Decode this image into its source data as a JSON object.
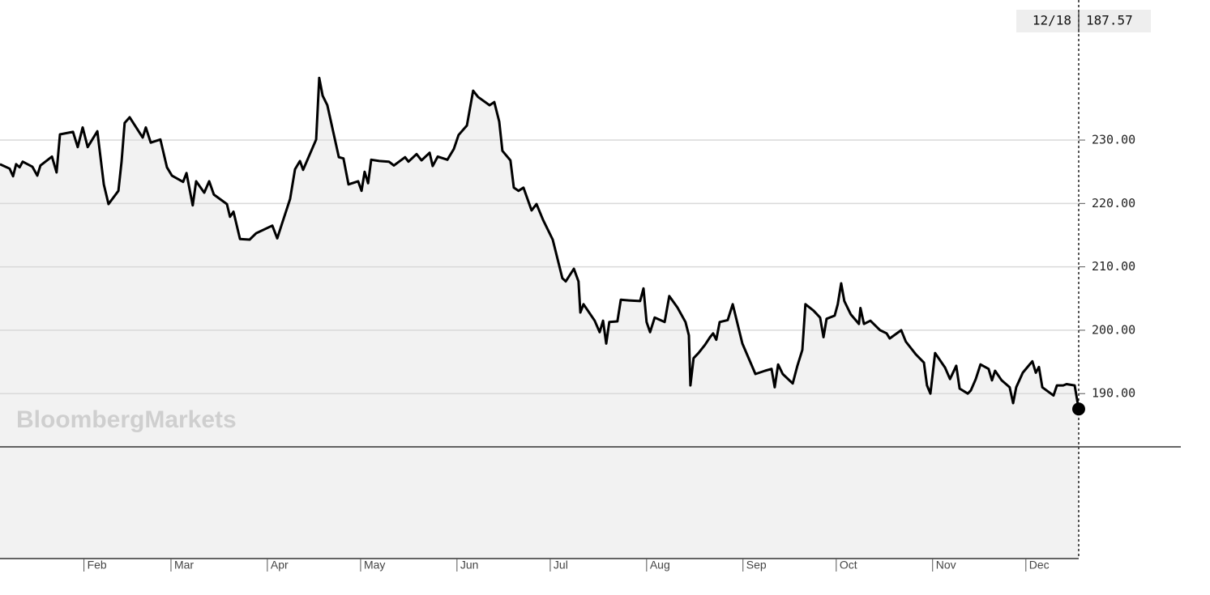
{
  "chart_data": {
    "type": "line",
    "color": "#000000",
    "fill": "#f2f2f2",
    "watermark": "BloombergMarkets",
    "crosshair": {
      "date": "12/18",
      "value": 187.57
    },
    "xlim": [
      5,
      352
    ],
    "ylim": [
      181.6,
      252.1
    ],
    "xticks": [
      {
        "value": 32,
        "label": "Feb"
      },
      {
        "value": 60,
        "label": "Mar"
      },
      {
        "value": 91,
        "label": "Apr"
      },
      {
        "value": 121,
        "label": "May"
      },
      {
        "value": 152,
        "label": "Jun"
      },
      {
        "value": 182,
        "label": "Jul"
      },
      {
        "value": 213,
        "label": "Aug"
      },
      {
        "value": 244,
        "label": "Sep"
      },
      {
        "value": 274,
        "label": "Oct"
      },
      {
        "value": 305,
        "label": "Nov"
      },
      {
        "value": 335,
        "label": "Dec"
      }
    ],
    "yticks": [
      {
        "value": 190,
        "label": "190.00"
      },
      {
        "value": 200,
        "label": "200.00"
      },
      {
        "value": 210,
        "label": "210.00"
      },
      {
        "value": 220,
        "label": "220.00"
      },
      {
        "value": 230,
        "label": "230.00"
      }
    ],
    "grid": true,
    "x": [
      5,
      8.1,
      9.2,
      10.2,
      11.3,
      12.3,
      15.4,
      17,
      18,
      21.7,
      23.2,
      24.3,
      28.5,
      30,
      31.6,
      33.2,
      36.3,
      38.4,
      39.9,
      43.1,
      44.1,
      45.1,
      46.7,
      50.9,
      51.9,
      53.5,
      56.6,
      58.7,
      60.3,
      63.9,
      65,
      67,
      68.1,
      70.7,
      72.3,
      73.8,
      78,
      79,
      80.1,
      82.2,
      85.3,
      87.4,
      92.6,
      94.2,
      95.7,
      98.3,
      99.9,
      101.5,
      102.5,
      106.7,
      107.7,
      108.8,
      110.3,
      114,
      115.5,
      117.1,
      120.2,
      121.3,
      122.3,
      123.4,
      124.4,
      127,
      130.1,
      131.7,
      135.3,
      136.4,
      139,
      140.6,
      143.2,
      144.2,
      145.8,
      148.9,
      151,
      152.5,
      155.2,
      157.2,
      158.8,
      162.5,
      164,
      165.6,
      166.6,
      169.2,
      170.3,
      171.8,
      173.4,
      176,
      177.6,
      179.7,
      182.8,
      185.9,
      187,
      189.6,
      191.1,
      191.7,
      192.7,
      196.3,
      197.9,
      199,
      200,
      201,
      203.6,
      204.7,
      207.3,
      210.9,
      212,
      213,
      214.1,
      215.6,
      218.8,
      220.3,
      222.9,
      225.5,
      226.6,
      227.1,
      228.1,
      229.7,
      231.8,
      233.4,
      234.4,
      235.4,
      236.5,
      239.1,
      240.7,
      243.8,
      248,
      251.1,
      253.2,
      254.2,
      255.3,
      256.8,
      260,
      261.5,
      263.1,
      264.1,
      266.7,
      268.8,
      269.9,
      270.9,
      273.5,
      274.5,
      275.6,
      276.6,
      278.7,
      281.3,
      281.8,
      282.9,
      285,
      288.1,
      290.2,
      291.2,
      294.9,
      296.4,
      299.6,
      302.2,
      303.2,
      304.3,
      305.8,
      309,
      310.6,
      312.6,
      313.7,
      316.3,
      317.3,
      318.9,
      320.4,
      323,
      324.1,
      325.1,
      327.2,
      329.8,
      330.9,
      331.9,
      334,
      337.1,
      338.2,
      339.2,
      340.3,
      343.9,
      345,
      347,
      348.1,
      350.7,
      352
    ],
    "values": [
      226.2,
      225.5,
      224.3,
      226.2,
      225.7,
      226.6,
      225.8,
      224.4,
      226.0,
      227.4,
      224.9,
      230.9,
      231.3,
      228.9,
      232.0,
      228.9,
      231.4,
      223.0,
      219.9,
      222.0,
      226.6,
      232.7,
      233.6,
      230.4,
      232.0,
      229.6,
      230.1,
      225.7,
      224.4,
      223.4,
      224.8,
      219.7,
      223.5,
      221.7,
      223.5,
      221.4,
      219.9,
      217.9,
      218.7,
      214.4,
      214.3,
      215.3,
      216.5,
      214.5,
      216.8,
      220.7,
      225.4,
      226.7,
      225.3,
      230.1,
      239.8,
      237.0,
      235.5,
      227.3,
      227.1,
      223.0,
      223.5,
      222.0,
      225.0,
      223.2,
      226.9,
      226.7,
      226.6,
      226.0,
      227.3,
      226.6,
      227.8,
      226.8,
      228.0,
      225.9,
      227.4,
      226.9,
      228.6,
      230.8,
      232.3,
      237.8,
      236.8,
      235.5,
      236.0,
      232.9,
      228.3,
      226.8,
      222.5,
      222.0,
      222.5,
      218.9,
      219.9,
      217.4,
      214.3,
      208.2,
      207.7,
      209.7,
      207.7,
      202.8,
      204.1,
      201.5,
      199.7,
      201.5,
      197.9,
      201.3,
      201.4,
      204.8,
      204.7,
      204.6,
      206.6,
      201.3,
      199.7,
      202.0,
      201.3,
      205.4,
      203.6,
      201.3,
      199.2,
      191.3,
      195.6,
      196.4,
      197.7,
      198.9,
      199.5,
      198.5,
      201.3,
      201.6,
      204.1,
      197.9,
      193.1,
      193.6,
      193.9,
      191.0,
      194.6,
      193.1,
      191.6,
      194.4,
      196.9,
      204.1,
      203.1,
      202.0,
      198.9,
      201.8,
      202.3,
      204.1,
      207.4,
      204.6,
      202.5,
      201.0,
      203.5,
      201.0,
      201.5,
      200.0,
      199.5,
      198.7,
      200.0,
      198.2,
      196.2,
      194.9,
      191.3,
      190.0,
      196.4,
      194.1,
      192.3,
      194.4,
      190.8,
      190.0,
      190.5,
      192.3,
      194.6,
      193.9,
      192.1,
      193.6,
      192.1,
      191.0,
      188.5,
      191.0,
      193.3,
      195.1,
      193.3,
      194.2,
      191.0,
      189.7,
      191.3,
      191.3,
      191.5,
      191.3,
      187.57
    ]
  }
}
